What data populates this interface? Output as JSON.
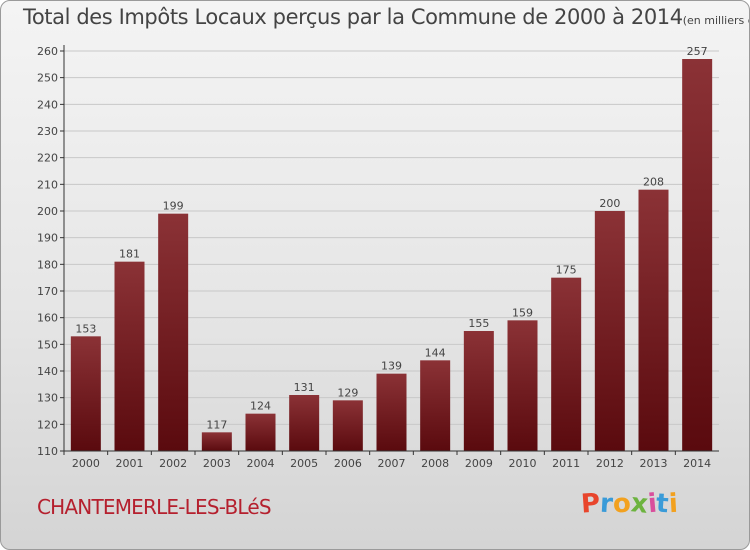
{
  "header": {
    "title": "Total des Impôts Locaux perçus par la Commune de 2000 à 2014",
    "unit": "(en milliers d'€)"
  },
  "footer": {
    "commune": "CHANTEMERLE-LES-BLéS",
    "logo_letters": [
      "P",
      "r",
      "o",
      "x",
      "i",
      "t",
      "i"
    ],
    "logo_colors": [
      "#e8452c",
      "#3a9bd8",
      "#f2a11f",
      "#6cb33f",
      "#d94f9c",
      "#3a9bd8",
      "#f2a11f"
    ]
  },
  "colors": {
    "bar_top": "#8b3236",
    "bar_bottom": "#5a0a0e",
    "grid": "#c8c8c8",
    "axis": "#333333",
    "text": "#444444",
    "accent": "#b5202e"
  },
  "chart_data": {
    "type": "bar",
    "title": "Total des Impôts Locaux perçus par la Commune de 2000 à 2014",
    "xlabel": "",
    "ylabel": "",
    "categories": [
      "2000",
      "2001",
      "2002",
      "2003",
      "2004",
      "2005",
      "2006",
      "2007",
      "2008",
      "2009",
      "2010",
      "2011",
      "2012",
      "2013",
      "2014"
    ],
    "values": [
      153,
      181,
      199,
      117,
      124,
      131,
      129,
      139,
      144,
      155,
      159,
      175,
      200,
      208,
      257
    ],
    "ylim": [
      110,
      260
    ],
    "yticks": [
      110,
      120,
      130,
      140,
      150,
      160,
      170,
      180,
      190,
      200,
      210,
      220,
      230,
      240,
      250,
      260
    ],
    "grid": true,
    "data_labels": true
  }
}
